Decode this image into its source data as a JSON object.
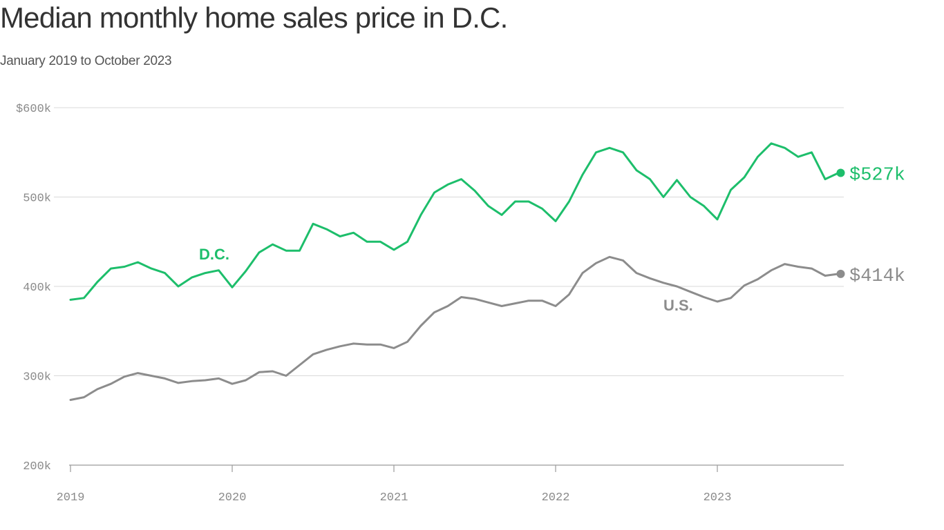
{
  "chart_data": {
    "type": "line",
    "title": "Median monthly home sales price in D.C.",
    "subtitle": "January 2019 to October 2023",
    "xlabel": "",
    "ylabel": "",
    "x_start": "2019-01",
    "x_end": "2023-10",
    "xticks": [
      "2019",
      "2020",
      "2021",
      "2022",
      "2023"
    ],
    "yticks": [
      "$600k",
      "500k",
      "400k",
      "300k",
      "200k"
    ],
    "ylim": [
      200,
      600
    ],
    "grid": true,
    "colors": {
      "dc": "#1dbe6b",
      "us": "#8c8c8c",
      "grid": "#d9d9d9",
      "text": "#333333"
    },
    "series": [
      {
        "name": "D.C.",
        "key": "dc",
        "end_label": "$527k",
        "values": [
          385,
          387,
          405,
          420,
          422,
          427,
          420,
          415,
          400,
          410,
          415,
          418,
          399,
          417,
          438,
          447,
          440,
          440,
          470,
          464,
          456,
          460,
          450,
          450,
          441,
          450,
          480,
          505,
          514,
          520,
          507,
          490,
          480,
          495,
          495,
          487,
          473,
          495,
          525,
          550,
          555,
          550,
          530,
          520,
          500,
          519,
          500,
          490,
          475,
          508,
          522,
          545,
          560,
          555,
          545,
          550,
          520,
          527
        ]
      },
      {
        "name": "U.S.",
        "key": "us",
        "end_label": "$414k",
        "values": [
          273,
          276,
          285,
          291,
          299,
          303,
          300,
          297,
          292,
          294,
          295,
          297,
          291,
          295,
          304,
          305,
          300,
          312,
          324,
          329,
          333,
          336,
          335,
          335,
          331,
          338,
          356,
          371,
          378,
          388,
          386,
          382,
          378,
          381,
          384,
          384,
          378,
          391,
          415,
          426,
          433,
          429,
          415,
          409,
          404,
          400,
          394,
          388,
          383,
          387,
          401,
          408,
          418,
          425,
          422,
          420,
          412,
          414
        ]
      }
    ]
  }
}
